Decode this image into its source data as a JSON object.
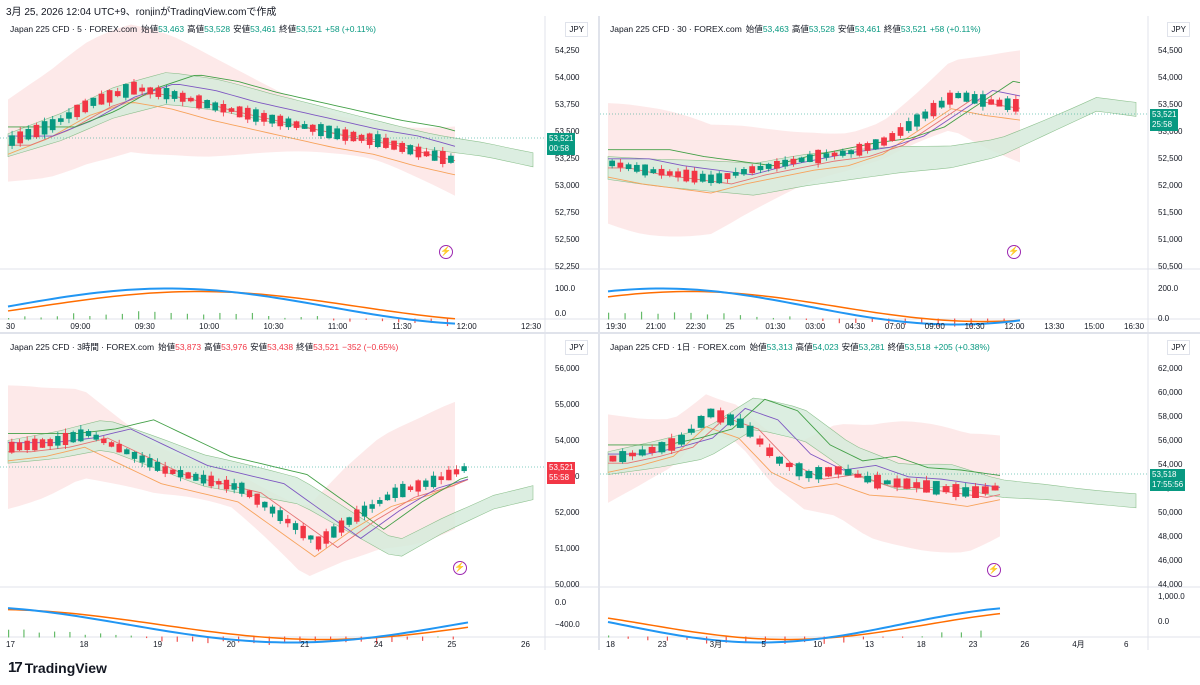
{
  "header": {
    "text": "3月 25, 2026 12:04 UTC+9、ronjinがTradingView.comで作成"
  },
  "footer": {
    "brand": "TradingView"
  },
  "colors": {
    "up": "#089981",
    "down": "#f23645",
    "macd": "#2196f3",
    "signal": "#ff6d00",
    "bb_fill": "#fce4e4",
    "cloud_fill": "#e3f1e6"
  },
  "panels": [
    {
      "title": "Japan 225 CFD · 5 · FOREX.com",
      "ohlc": {
        "o_label": "始値",
        "o": "53,463",
        "h_label": "高値",
        "h": "53,528",
        "l_label": "安値",
        "l": "53,461",
        "c_label": "終値",
        "c": "53,521",
        "chg": "+58 (+0.11%)"
      },
      "currency": "JPY",
      "y_ticks": [
        "54,250",
        "54,000",
        "53,750",
        "53,500",
        "53,250",
        "53,000",
        "52,750",
        "52,500",
        "52,250"
      ],
      "macd_ticks": [
        "100.0",
        "0.0"
      ],
      "x_ticks": [
        "30",
        "09:00",
        "09:30",
        "10:00",
        "10:30",
        "11:00",
        "11:30",
        "12:00",
        "12:30"
      ],
      "price_tag": {
        "price": "53,521",
        "time": "00:58"
      }
    },
    {
      "title": "Japan 225 CFD · 30 · FOREX.com",
      "ohlc": {
        "o_label": "始値",
        "o": "53,463",
        "h_label": "高値",
        "h": "53,528",
        "l_label": "安値",
        "l": "53,461",
        "c_label": "終値",
        "c": "53,521",
        "chg": "+58 (+0.11%)"
      },
      "currency": "JPY",
      "y_ticks": [
        "54,500",
        "54,000",
        "53,500",
        "53,000",
        "52,500",
        "52,000",
        "51,500",
        "51,000",
        "50,500"
      ],
      "macd_ticks": [
        "200.0",
        "0.0"
      ],
      "x_ticks": [
        "19:30",
        "21:00",
        "22:30",
        "25",
        "01:30",
        "03:00",
        "04:30",
        "07:00",
        "09:00",
        "10:30",
        "12:00",
        "13:30",
        "15:00",
        "16:30"
      ],
      "price_tag": {
        "price": "53,521",
        "time": "25:58"
      }
    },
    {
      "title": "Japan 225 CFD · 3時間 · FOREX.com",
      "ohlc": {
        "o_label": "始値",
        "o": "53,873",
        "h_label": "高値",
        "h": "53,976",
        "l_label": "安値",
        "l": "53,438",
        "c_label": "終値",
        "c": "53,521",
        "chg": "−352 (−0.65%)"
      },
      "currency": "JPY",
      "y_ticks": [
        "56,000",
        "55,000",
        "54,000",
        "53,000",
        "52,000",
        "51,000",
        "50,000"
      ],
      "macd_ticks": [
        "0.0",
        "−400.0"
      ],
      "x_ticks": [
        "17",
        "18",
        "19",
        "20",
        "21",
        "24",
        "25",
        "26"
      ],
      "price_tag": {
        "price": "53,521",
        "time": "55:58"
      }
    },
    {
      "title": "Japan 225 CFD · 1日 · FOREX.com",
      "ohlc": {
        "o_label": "始値",
        "o": "53,313",
        "h_label": "高値",
        "h": "54,023",
        "l_label": "安値",
        "l": "53,281",
        "c_label": "終値",
        "c": "53,518",
        "chg": "+205 (+0.38%)"
      },
      "currency": "JPY",
      "y_ticks": [
        "62,000",
        "60,000",
        "58,000",
        "56,000",
        "54,000",
        "52,000",
        "50,000",
        "48,000",
        "46,000",
        "44,000"
      ],
      "macd_ticks": [
        "1,000.0",
        "0.0"
      ],
      "x_ticks": [
        "18",
        "23",
        "3月",
        "5",
        "10",
        "13",
        "18",
        "23",
        "26",
        "4月",
        "6"
      ],
      "price_tag": {
        "price": "53,518",
        "time": "17:55:56"
      }
    }
  ]
}
